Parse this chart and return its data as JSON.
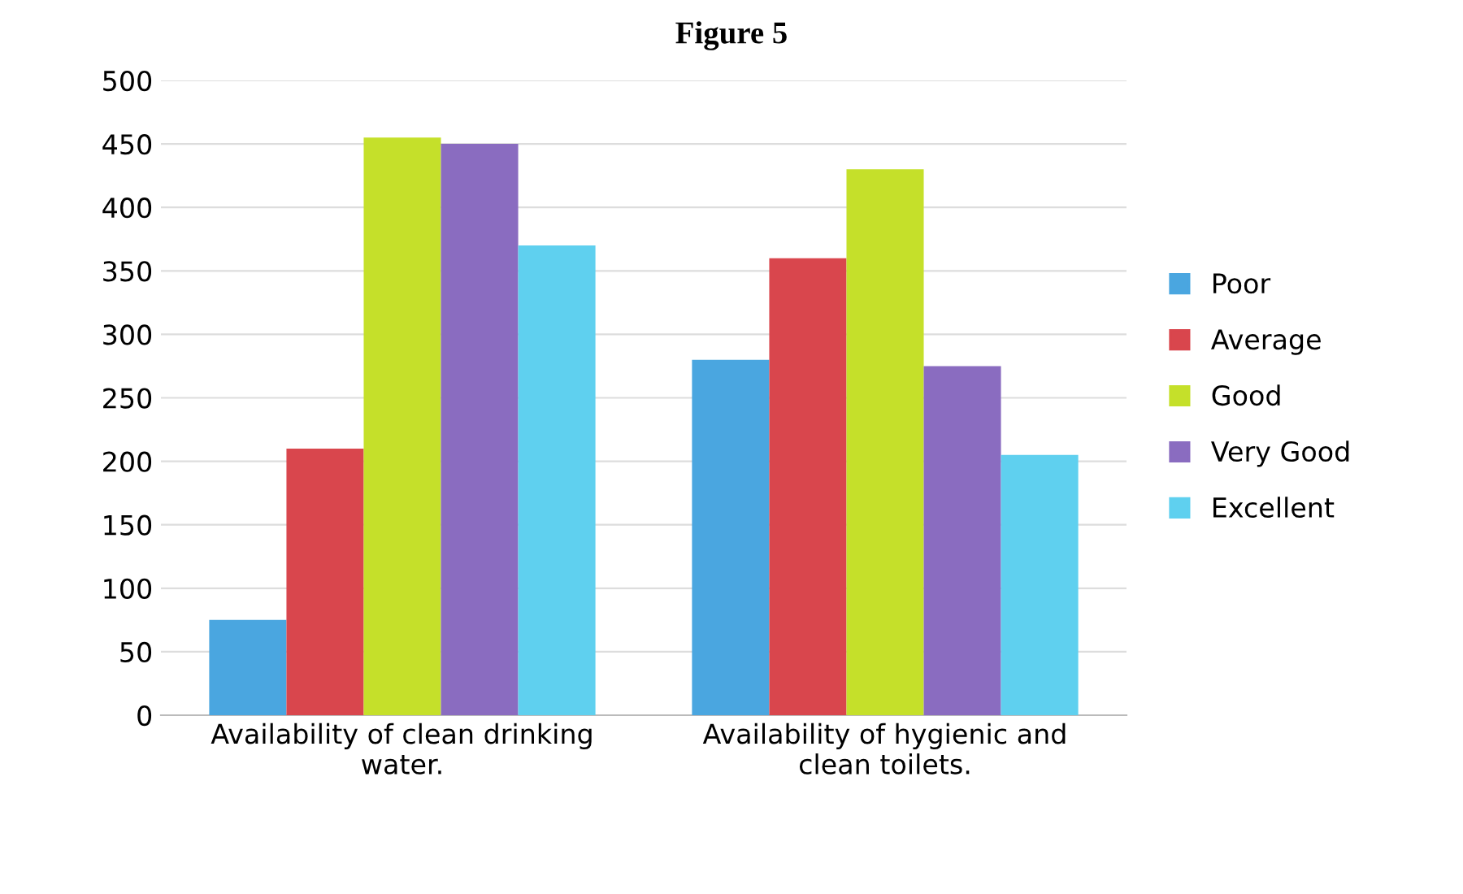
{
  "chart_data": {
    "type": "bar",
    "title": "Figure 5",
    "categories": [
      "Availability of clean drinking\nwater.",
      "Availability of hygienic and\nclean toilets."
    ],
    "series": [
      {
        "name": "Poor",
        "color": "#4aa6e0",
        "values": [
          75,
          280
        ]
      },
      {
        "name": "Average",
        "color": "#d9464d",
        "values": [
          210,
          360
        ]
      },
      {
        "name": "Good",
        "color": "#c5e02a",
        "values": [
          455,
          430
        ]
      },
      {
        "name": "Very Good",
        "color": "#8a6cc0",
        "values": [
          450,
          275
        ]
      },
      {
        "name": "Excellent",
        "color": "#5fd0ef",
        "values": [
          370,
          205
        ]
      }
    ],
    "ylim": [
      0,
      500
    ],
    "yticks": [
      0,
      50,
      100,
      150,
      200,
      250,
      300,
      350,
      400,
      450,
      500
    ],
    "grid": "y",
    "legend": "right"
  }
}
